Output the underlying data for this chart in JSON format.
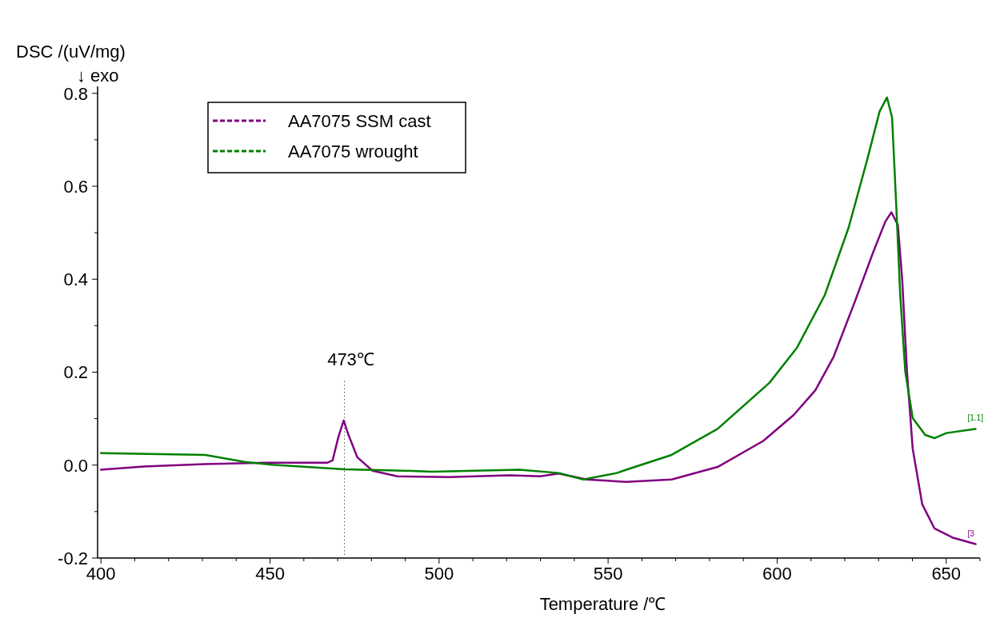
{
  "chart_data": {
    "type": "line",
    "xlabel": "Temperature /℃",
    "ylabel": "DSC /(uV/mg)",
    "annotations": [
      "↓ exo",
      {
        "text": "[1.1]",
        "x": 658.7,
        "y": 0.078
      },
      {
        "text": "[3",
        "x": 658.7,
        "y": -0.17
      }
    ],
    "xlim": [
      399,
      660
    ],
    "ylim": [
      -0.2,
      0.815
    ],
    "xticks": [
      400,
      {
        "value": 410,
        "label": null
      },
      {
        "value": 420,
        "label": null
      },
      {
        "value": 430,
        "label": null
      },
      {
        "value": 440,
        "label": null
      },
      450,
      {
        "value": 460,
        "label": null
      },
      {
        "value": 470,
        "label": null
      },
      {
        "value": 480,
        "label": null
      },
      {
        "value": 490,
        "label": null
      },
      500,
      {
        "value": 510,
        "label": null
      },
      {
        "value": 520,
        "label": null
      },
      {
        "value": 530,
        "label": null
      },
      {
        "value": 540,
        "label": null
      },
      550,
      {
        "value": 560,
        "label": null
      },
      {
        "value": 570,
        "label": null
      },
      {
        "value": 580,
        "label": null
      },
      {
        "value": 590,
        "label": null
      },
      600,
      {
        "value": 610,
        "label": null
      },
      {
        "value": 620,
        "label": null
      },
      {
        "value": 630,
        "label": null
      },
      {
        "value": 640,
        "label": null
      },
      650,
      {
        "value": 660,
        "label": null
      }
    ],
    "yticks": [
      {
        "value": -0.2,
        "label": "-0.2"
      },
      {
        "value": -0.1,
        "label": null
      },
      {
        "value": 0,
        "label": "0.0"
      },
      {
        "value": 0.1,
        "label": null
      },
      {
        "value": 0.2,
        "label": "0.2"
      },
      {
        "value": 0.3,
        "label": null
      },
      {
        "value": 0.4,
        "label": "0.4"
      },
      {
        "value": 0.5,
        "label": null
      },
      {
        "value": 0.6,
        "label": "0.6"
      },
      {
        "value": 0.7,
        "label": null
      },
      {
        "value": 0.8,
        "label": "0.8"
      }
    ],
    "grid": false,
    "legend": "top left",
    "marker": "none",
    "line_style": "solid",
    "ref_lines": [
      {
        "axis": "x",
        "value": 472,
        "label": "473℃",
        "line_style": "dotted",
        "color": "#555555"
      }
    ],
    "series": [
      {
        "name": "AA7075 SSM cast",
        "color": "#800080",
        "x": [
          400,
          412.7,
          430.8,
          448.8,
          466.9,
          468.5,
          470.2,
          471.8,
          473.1,
          475.8,
          480.3,
          487.6,
          502.9,
          520.9,
          530,
          535.4,
          543.6,
          555.3,
          568.8,
          582.4,
          595.9,
          604.9,
          611.3,
          616.7,
          623,
          628.4,
          632,
          633.8,
          635.7,
          637,
          638.4,
          640.1,
          642.9,
          646.5,
          651.9,
          658.7
        ],
        "values": [
          -0.01,
          -0.003,
          0.002,
          0.005,
          0.005,
          0.01,
          0.06,
          0.096,
          0.067,
          0.017,
          -0.012,
          -0.024,
          -0.026,
          -0.022,
          -0.024,
          -0.018,
          -0.031,
          -0.036,
          -0.031,
          -0.004,
          0.052,
          0.108,
          0.161,
          0.233,
          0.352,
          0.458,
          0.524,
          0.544,
          0.517,
          0.398,
          0.201,
          0.035,
          -0.084,
          -0.136,
          -0.156,
          -0.17
        ]
      },
      {
        "name": "AA7075 wrought",
        "color": "#008000",
        "x": [
          400,
          430.8,
          442.5,
          450.5,
          472,
          485,
          498,
          523.7,
          535.4,
          542.7,
          552.6,
          555.4,
          568.8,
          582.4,
          597.7,
          605.9,
          614.1,
          621.1,
          626.6,
          630.3,
          632.5,
          634,
          635.2,
          636.4,
          637.9,
          640.1,
          643.8,
          646.5,
          650.1,
          658.7
        ],
        "values": [
          0.026,
          0.022,
          0.007,
          0.001,
          -0.009,
          -0.011,
          -0.014,
          -0.01,
          -0.017,
          -0.031,
          -0.017,
          -0.01,
          0.022,
          0.078,
          0.177,
          0.253,
          0.366,
          0.51,
          0.656,
          0.761,
          0.791,
          0.748,
          0.563,
          0.366,
          0.201,
          0.101,
          0.065,
          0.058,
          0.069,
          0.078
        ]
      }
    ]
  }
}
